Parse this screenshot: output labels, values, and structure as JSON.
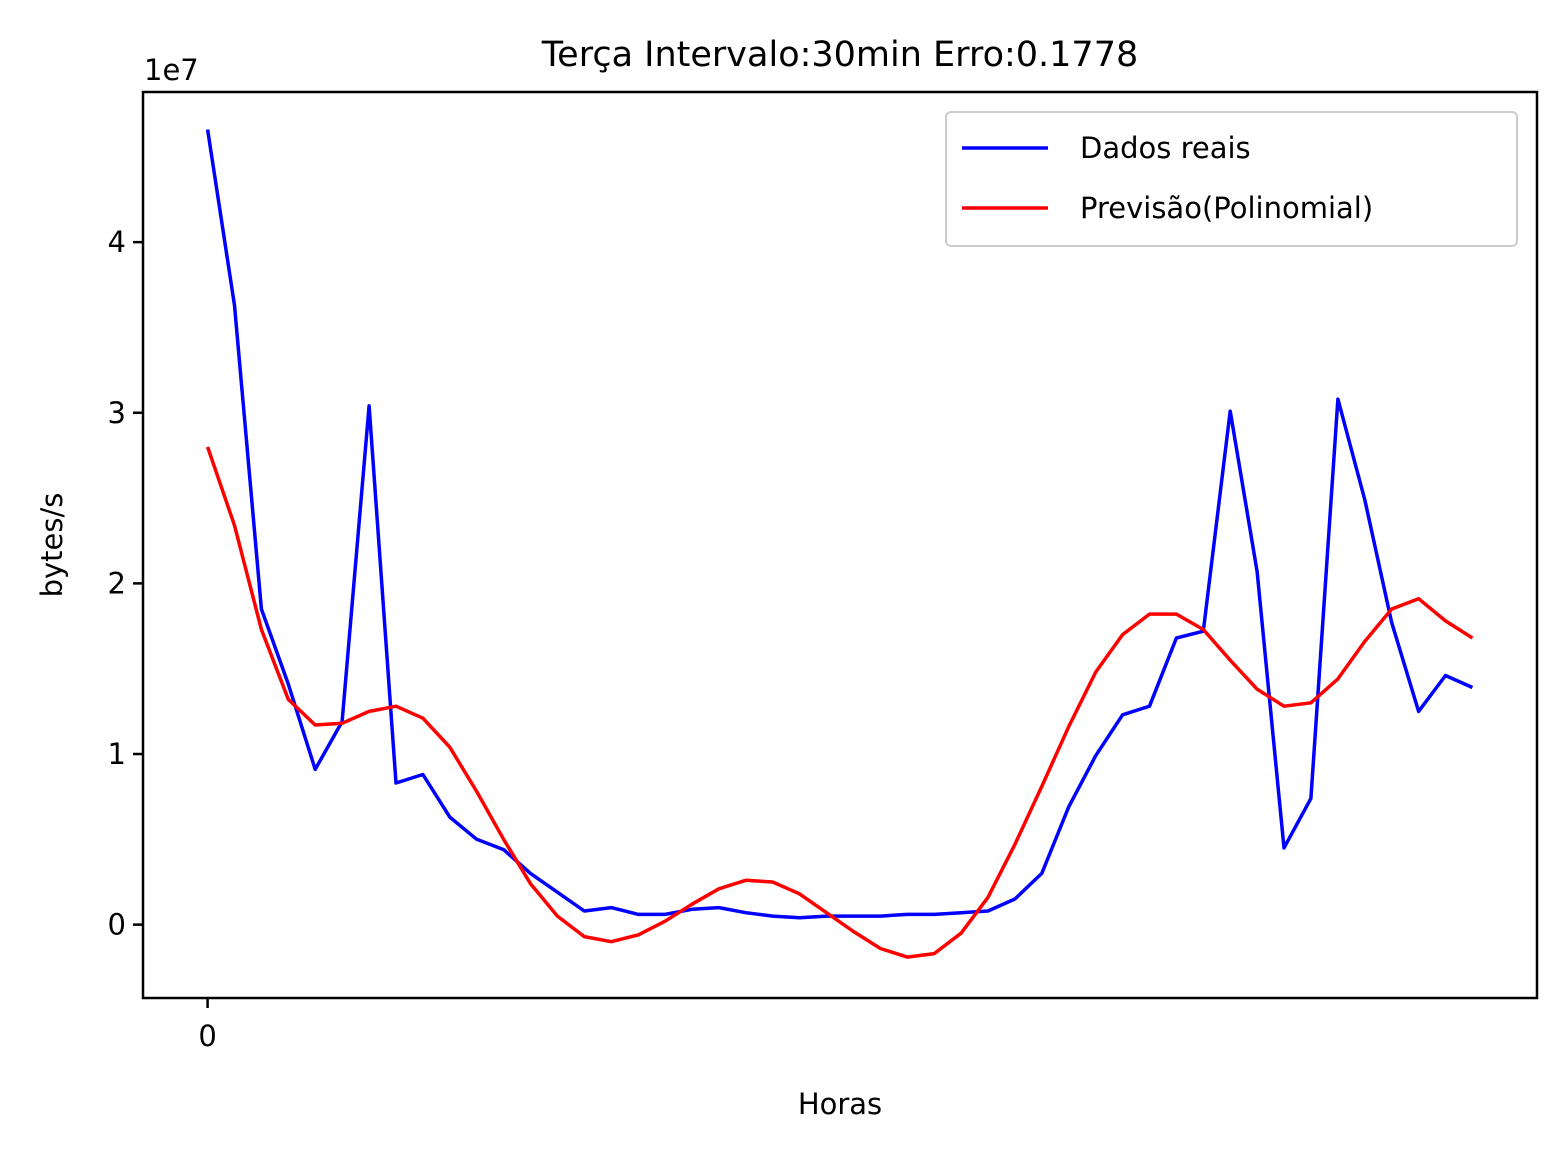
{
  "chart_data": {
    "type": "line",
    "title": "Terça Intervalo:30min Erro:0.1778",
    "xlabel": "Horas",
    "ylabel": "bytes/s",
    "y_offset_label": "1e7",
    "y_scale": 10000000,
    "xlim": [
      -2.4,
      49.4
    ],
    "ylim": [
      -4300000,
      48800000
    ],
    "xticks": [
      0
    ],
    "xtick_labels": [
      "0"
    ],
    "yticks": [
      0,
      10000000,
      20000000,
      30000000,
      40000000
    ],
    "ytick_labels": [
      "0",
      "1",
      "2",
      "3",
      "4"
    ],
    "grid": false,
    "legend_position": "upper right",
    "series": [
      {
        "name": "Dados reais",
        "color": "#0000ff",
        "x": [
          0,
          1,
          2,
          3,
          4,
          5,
          6,
          7,
          8,
          9,
          10,
          11,
          12,
          13,
          14,
          15,
          16,
          17,
          18,
          19,
          20,
          21,
          22,
          23,
          24,
          25,
          26,
          27,
          28,
          29,
          30,
          31,
          32,
          33,
          34,
          35,
          36,
          37,
          38,
          39,
          40,
          41,
          42,
          43,
          44,
          45,
          46,
          47
        ],
        "y": [
          46600000,
          36300000,
          18500000,
          14100000,
          9100000,
          11900000,
          30400000,
          8300000,
          8800000,
          6300000,
          5000000,
          4400000,
          3000000,
          1900000,
          800000,
          1000000,
          600000,
          600000,
          900000,
          1000000,
          700000,
          500000,
          400000,
          500000,
          500000,
          500000,
          600000,
          600000,
          700000,
          800000,
          1500000,
          3000000,
          6900000,
          9900000,
          12300000,
          12800000,
          16800000,
          17200000,
          30100000,
          20700000,
          4500000,
          7400000,
          30800000,
          24900000,
          17700000,
          12500000,
          14600000,
          13900000
        ]
      },
      {
        "name": "Previsão(Polinomial)",
        "color": "#ff0000",
        "x": [
          0,
          1,
          2,
          3,
          4,
          5,
          6,
          7,
          8,
          9,
          10,
          11,
          12,
          13,
          14,
          15,
          16,
          17,
          18,
          19,
          20,
          21,
          22,
          23,
          24,
          25,
          26,
          27,
          28,
          29,
          30,
          31,
          32,
          33,
          34,
          35,
          36,
          37,
          38,
          39,
          40,
          41,
          42,
          43,
          44,
          45,
          46,
          47
        ],
        "y": [
          28000000,
          23400000,
          17300000,
          13200000,
          11700000,
          11800000,
          12500000,
          12800000,
          12100000,
          10400000,
          7800000,
          5000000,
          2400000,
          500000,
          -700000,
          -1000000,
          -600000,
          200000,
          1200000,
          2100000,
          2600000,
          2500000,
          1800000,
          700000,
          -400000,
          -1400000,
          -1900000,
          -1700000,
          -500000,
          1600000,
          4700000,
          8100000,
          11600000,
          14800000,
          17000000,
          18200000,
          18200000,
          17300000,
          15500000,
          13800000,
          12800000,
          13000000,
          14400000,
          16600000,
          18500000,
          19100000,
          17800000,
          16800000
        ]
      }
    ]
  }
}
